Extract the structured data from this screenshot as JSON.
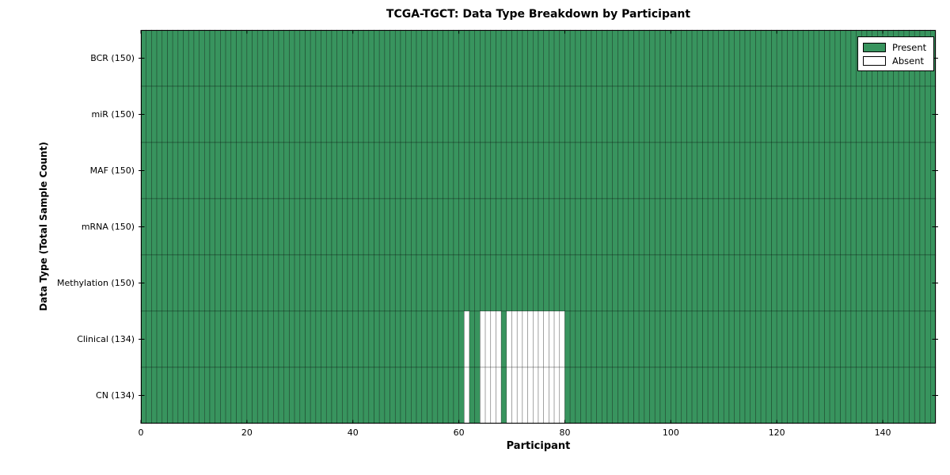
{
  "chart_data": {
    "type": "heatmap",
    "title": "TCGA-TGCT: Data Type Breakdown by Participant",
    "xlabel": "Participant",
    "ylabel": "Data Type (Total Sample Count)",
    "xlim": [
      0,
      150
    ],
    "n_participants": 150,
    "x_ticks": [
      0,
      20,
      40,
      60,
      80,
      100,
      120,
      140
    ],
    "rows": [
      {
        "label": "BCR (150)",
        "data_type": "BCR",
        "total_samples": 150,
        "absent_participants": []
      },
      {
        "label": "miR (150)",
        "data_type": "miR",
        "total_samples": 150,
        "absent_participants": []
      },
      {
        "label": "MAF (150)",
        "data_type": "MAF",
        "total_samples": 150,
        "absent_participants": []
      },
      {
        "label": "mRNA (150)",
        "data_type": "mRNA",
        "total_samples": 150,
        "absent_participants": []
      },
      {
        "label": "Methylation (150)",
        "data_type": "Methylation",
        "total_samples": 150,
        "absent_participants": []
      },
      {
        "label": "Clinical (134)",
        "data_type": "Clinical",
        "total_samples": 134,
        "absent_participants": [
          61,
          64,
          65,
          66,
          67,
          69,
          70,
          71,
          72,
          73,
          74,
          75,
          76,
          77,
          78,
          79
        ]
      },
      {
        "label": "CN (134)",
        "data_type": "CN",
        "total_samples": 134,
        "absent_participants": [
          61,
          64,
          65,
          66,
          67,
          69,
          70,
          71,
          72,
          73,
          74,
          75,
          76,
          77,
          78,
          79
        ]
      }
    ],
    "legend": {
      "position": "upper right",
      "entries": [
        {
          "label": "Present",
          "color": "#38945e"
        },
        {
          "label": "Absent",
          "color": "#ffffff"
        }
      ]
    },
    "colors": {
      "present": "#38945e",
      "absent": "#ffffff",
      "cell_edge": "rgba(0,0,0,0.45)",
      "frame": "#000000",
      "background": "#ffffff"
    }
  }
}
